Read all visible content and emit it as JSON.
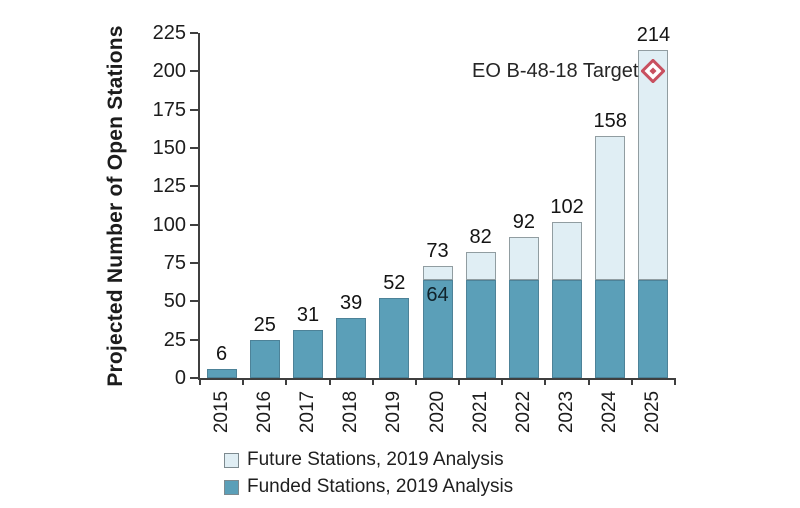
{
  "chart_data": {
    "type": "bar",
    "stacked": true,
    "title": "",
    "xlabel": "",
    "ylabel": "Projected Number of Open Stations",
    "ylim": [
      0,
      225
    ],
    "yticks": [
      0,
      25,
      50,
      75,
      100,
      125,
      150,
      175,
      200,
      225
    ],
    "grid": false,
    "legend_position": "bottom",
    "categories": [
      "2015",
      "2016",
      "2017",
      "2018",
      "2019",
      "2020",
      "2021",
      "2022",
      "2023",
      "2024",
      "2025"
    ],
    "series": [
      {
        "name": "Funded Stations, 2019 Analysis",
        "color": "#5b9fb8",
        "values": [
          6,
          25,
          31,
          39,
          52,
          64,
          64,
          64,
          64,
          64,
          64
        ]
      },
      {
        "name": "Future Stations, 2019 Analysis",
        "color": "#e0eef4",
        "values": [
          0,
          0,
          0,
          0,
          0,
          9,
          18,
          28,
          38,
          94,
          150
        ]
      }
    ],
    "totals": [
      6,
      25,
      31,
      39,
      52,
      73,
      82,
      92,
      102,
      158,
      214
    ],
    "total_labels": [
      "6",
      "25",
      "31",
      "39",
      "52",
      "73",
      "82",
      "92",
      "102",
      "158",
      "214"
    ],
    "inner_labels": [
      {
        "category": "2020",
        "text": "64"
      }
    ],
    "annotation": {
      "label": "EO B-48-18 Target",
      "category": "2025",
      "value": 200,
      "marker": "diamond-in-diamond-icon",
      "color": "#c8505f"
    },
    "legend": [
      {
        "label": "Future Stations, 2019 Analysis",
        "color": "#e0eef4"
      },
      {
        "label": "Funded Stations, 2019 Analysis",
        "color": "#5b9fb8"
      }
    ],
    "colors": {
      "axis": "#3f3f3f",
      "funded_border": "#4d8298",
      "future_border": "#919da1",
      "text": "#1c1c1c"
    }
  }
}
